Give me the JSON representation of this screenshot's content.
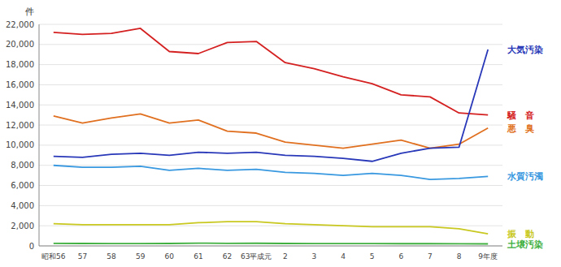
{
  "chart_data": {
    "type": "line",
    "categories": [
      "昭和56",
      "57",
      "58",
      "59",
      "60",
      "61",
      "62",
      "63平成元",
      "2",
      "3",
      "4",
      "5",
      "6",
      "7",
      "8",
      "9年度"
    ],
    "y_label": "件",
    "ylim": [
      0,
      22000
    ],
    "yticks": [
      0,
      {
        "value": 2000,
        "label": "2,000"
      },
      {
        "value": 4000,
        "label": "4,000"
      },
      {
        "value": 6000,
        "label": "6,000"
      },
      {
        "value": 8000,
        "label": "8,000"
      },
      {
        "value": 10000,
        "label": "10,000"
      },
      {
        "value": 12000,
        "label": "12,000"
      },
      {
        "value": 14000,
        "label": "14,000"
      },
      {
        "value": 16000,
        "label": "16,000"
      },
      {
        "value": 18000,
        "label": "18,000"
      },
      {
        "value": 20000,
        "label": "20,000"
      },
      {
        "value": 22000,
        "label": "22,000"
      }
    ],
    "grid": true,
    "series": [
      {
        "name": "騒　音",
        "color": "#d42020",
        "values": [
          21200,
          21000,
          21100,
          21600,
          19300,
          19100,
          20200,
          20300,
          18200,
          17600,
          16800,
          16100,
          15000,
          14800,
          13200,
          13000
        ]
      },
      {
        "name": "悪　臭",
        "color": "#e07020",
        "values": [
          12900,
          12200,
          12700,
          13100,
          12200,
          12500,
          11400,
          11200,
          10300,
          10000,
          9700,
          10100,
          10500,
          9700,
          10100,
          11700
        ]
      },
      {
        "name": "大気汚染",
        "color": "#2838b8",
        "values": [
          8900,
          8800,
          9100,
          9200,
          9000,
          9300,
          9200,
          9300,
          9000,
          8900,
          8700,
          8400,
          9200,
          9700,
          9800,
          19500
        ]
      },
      {
        "name": "水質汚濁",
        "color": "#3898e0",
        "values": [
          8000,
          7800,
          7800,
          7900,
          7500,
          7700,
          7500,
          7600,
          7300,
          7200,
          7000,
          7200,
          7000,
          6600,
          6700,
          6900
        ]
      },
      {
        "name": "振　動",
        "color": "#c8c820",
        "values": [
          2200,
          2100,
          2100,
          2100,
          2100,
          2300,
          2400,
          2400,
          2200,
          2100,
          2000,
          1900,
          1900,
          1900,
          1700,
          1200
        ]
      },
      {
        "name": "土壌汚染",
        "color": "#40b040",
        "values": [
          250,
          240,
          230,
          230,
          240,
          280,
          250,
          260,
          240,
          230,
          230,
          230,
          220,
          220,
          210,
          200
        ]
      }
    ]
  }
}
